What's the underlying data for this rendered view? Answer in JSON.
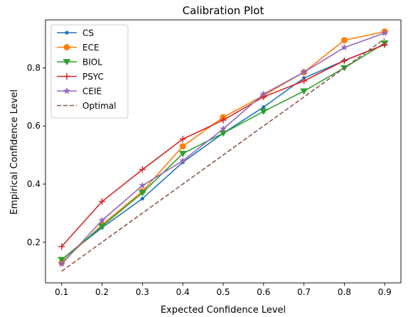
{
  "chart_data": {
    "type": "line",
    "title": "Calibration Plot",
    "xlabel": "Expected Confidence Level",
    "ylabel": "Empirical Confidence Level",
    "x": [
      0.1,
      0.2,
      0.3,
      0.4,
      0.5,
      0.6,
      0.7,
      0.8,
      0.9
    ],
    "xlim": [
      0.06,
      0.94
    ],
    "ylim": [
      0.06,
      0.965
    ],
    "xticks": [
      "0.1",
      "0.2",
      "0.3",
      "0.4",
      "0.5",
      "0.6",
      "0.7",
      "0.8",
      "0.9"
    ],
    "yticks": [
      "0.2",
      "0.4",
      "0.6",
      "0.8"
    ],
    "grid": false,
    "legend_position": "top-left",
    "series": [
      {
        "name": "CS",
        "color": "#1f77b4",
        "marker": "dot",
        "linestyle": "solid",
        "values": [
          0.14,
          0.25,
          0.35,
          0.475,
          0.575,
          0.665,
          0.765,
          0.825,
          0.88
        ]
      },
      {
        "name": "ECE",
        "color": "#ff7f0e",
        "marker": "circle",
        "linestyle": "solid",
        "values": [
          0.13,
          0.26,
          0.375,
          0.53,
          0.63,
          0.705,
          0.785,
          0.895,
          0.925
        ]
      },
      {
        "name": "BIOL",
        "color": "#2ca02c",
        "marker": "triangle-down",
        "linestyle": "solid",
        "values": [
          0.14,
          0.255,
          0.37,
          0.505,
          0.575,
          0.65,
          0.72,
          0.8,
          0.885
        ]
      },
      {
        "name": "PSYC",
        "color": "#d62728",
        "marker": "plus",
        "linestyle": "solid",
        "values": [
          0.185,
          0.34,
          0.45,
          0.555,
          0.62,
          0.7,
          0.755,
          0.825,
          0.88
        ]
      },
      {
        "name": "CEIE",
        "color": "#9467bd",
        "marker": "star",
        "linestyle": "solid",
        "values": [
          0.125,
          0.275,
          0.395,
          0.48,
          0.59,
          0.71,
          0.785,
          0.87,
          0.92
        ]
      },
      {
        "name": "Optimal",
        "color": "#8c564b",
        "marker": "none",
        "linestyle": "dashed",
        "values": [
          0.1,
          0.2,
          0.3,
          0.4,
          0.5,
          0.6,
          0.7,
          0.8,
          0.9
        ]
      }
    ]
  }
}
